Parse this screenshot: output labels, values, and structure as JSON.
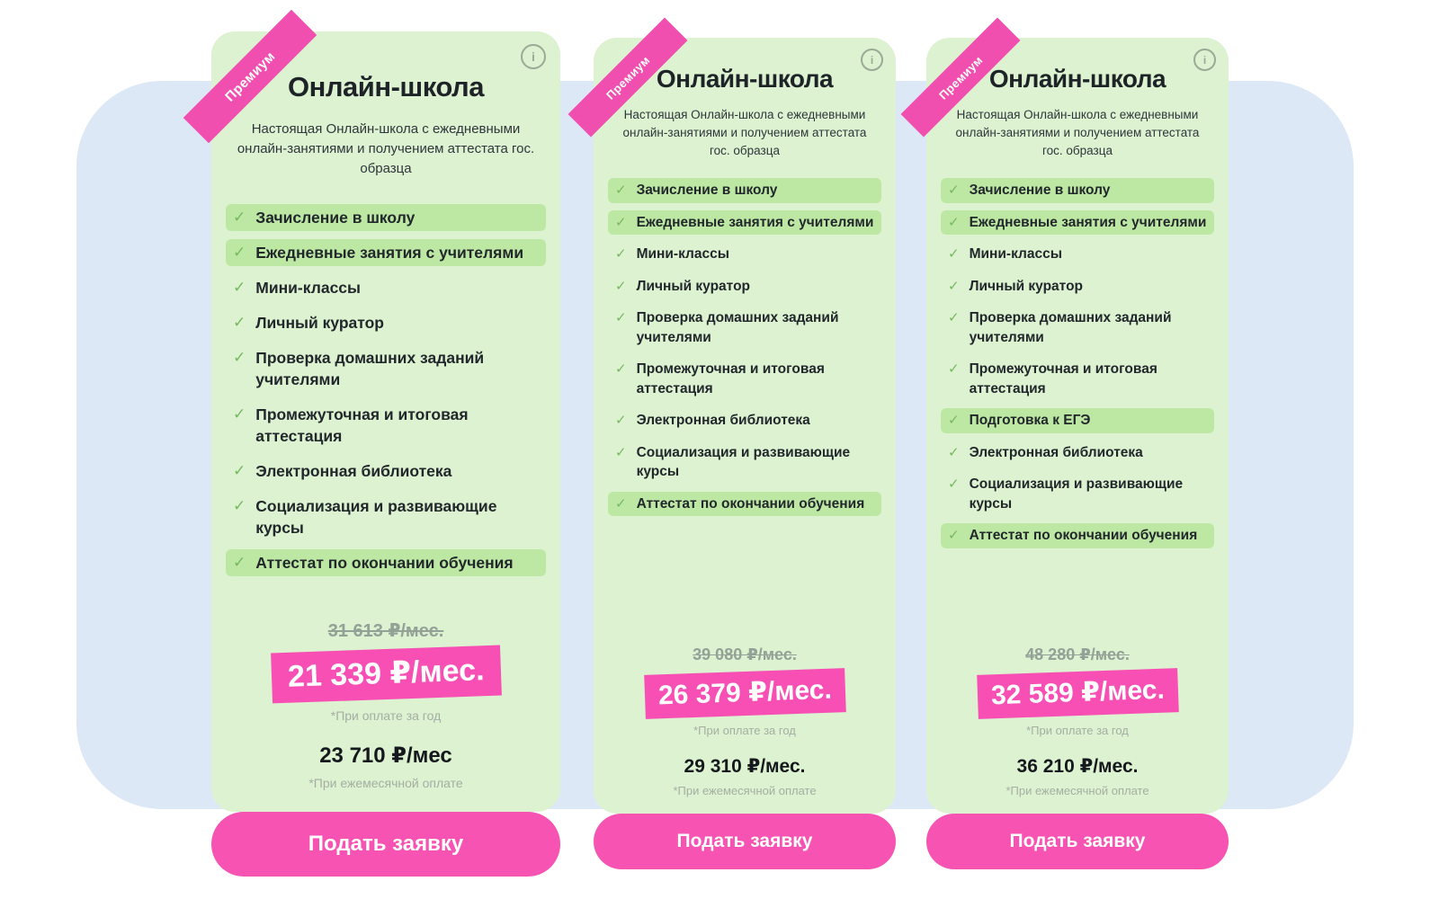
{
  "page": {
    "background_color": "#ffffff",
    "panel_color": "#dde8f6"
  },
  "colors": {
    "card_green": "#dcf2d0",
    "highlight_green": "#bde8a4",
    "accent_pink": "#f653b2",
    "ribbon_pink": "#f04fb0",
    "check_green": "#76b85f",
    "text_dark": "#22272c",
    "old_price_gray": "#94a197",
    "note_gray": "#a6aea4"
  },
  "icons": {
    "check": "✓",
    "info": "i"
  },
  "cards": [
    {
      "ribbon": "Премиум",
      "title": "Онлайн-школа",
      "description": "Настоящая Онлайн-школа с ежедневными онлайн-занятиями и получением аттестата гос. образца",
      "features": [
        {
          "text": "Зачисление в школу",
          "highlighted": true
        },
        {
          "text": "Ежедневные занятия с учителями",
          "highlighted": true
        },
        {
          "text": "Мини-классы",
          "highlighted": false
        },
        {
          "text": "Личный куратор",
          "highlighted": false
        },
        {
          "text": "Проверка домашних заданий учителями",
          "highlighted": false
        },
        {
          "text": "Промежуточная и итоговая аттестация",
          "highlighted": false
        },
        {
          "text": "Электронная библиотека",
          "highlighted": false
        },
        {
          "text": "Социализация и развивающие курсы",
          "highlighted": false
        },
        {
          "text": "Аттестат по окончании обучения",
          "highlighted": true
        }
      ],
      "pricing": {
        "old_price": "31 613 ₽/мес.",
        "promo_price": "21 339 ₽/мес.",
        "promo_note": "*При оплате за год",
        "monthly_price": "23 710 ₽/мес",
        "monthly_note": "*При ежемесячной оплате"
      },
      "cta_label": "Подать заявку"
    },
    {
      "ribbon": "Премиум",
      "title": "Онлайн-школа",
      "description": "Настоящая Онлайн-школа с ежедневными онлайн-занятиями и получением аттестата гос. образца",
      "features": [
        {
          "text": "Зачисление в школу",
          "highlighted": true
        },
        {
          "text": "Ежедневные занятия с учителями",
          "highlighted": true
        },
        {
          "text": "Мини-классы",
          "highlighted": false
        },
        {
          "text": "Личный куратор",
          "highlighted": false
        },
        {
          "text": "Проверка домашних заданий учителями",
          "highlighted": false
        },
        {
          "text": "Промежуточная и итоговая аттестация",
          "highlighted": false
        },
        {
          "text": "Электронная библиотека",
          "highlighted": false
        },
        {
          "text": "Социализация и развивающие курсы",
          "highlighted": false
        },
        {
          "text": "Аттестат по окончании обучения",
          "highlighted": true
        }
      ],
      "pricing": {
        "old_price": "39 080 ₽/мес.",
        "promo_price": "26 379 ₽/мес.",
        "promo_note": "*При оплате за год",
        "monthly_price": "29 310 ₽/мес.",
        "monthly_note": "*При ежемесячной оплате"
      },
      "cta_label": "Подать заявку"
    },
    {
      "ribbon": "Премиум",
      "title": "Онлайн-школа",
      "description": "Настоящая Онлайн-школа с ежедневными онлайн-занятиями и получением аттестата гос. образца",
      "features": [
        {
          "text": "Зачисление в школу",
          "highlighted": true
        },
        {
          "text": "Ежедневные занятия с учителями",
          "highlighted": true
        },
        {
          "text": "Мини-классы",
          "highlighted": false
        },
        {
          "text": "Личный куратор",
          "highlighted": false
        },
        {
          "text": "Проверка домашних заданий учителями",
          "highlighted": false
        },
        {
          "text": "Промежуточная и итоговая аттестация",
          "highlighted": false
        },
        {
          "text": "Подготовка к ЕГЭ",
          "highlighted": true
        },
        {
          "text": "Электронная библиотека",
          "highlighted": false
        },
        {
          "text": "Социализация и развивающие курсы",
          "highlighted": false
        },
        {
          "text": "Аттестат по окончании обучения",
          "highlighted": true
        }
      ],
      "pricing": {
        "old_price": "48 280 ₽/мес.",
        "promo_price": "32 589 ₽/мес.",
        "promo_note": "*При оплате за год",
        "monthly_price": "36 210 ₽/мес.",
        "monthly_note": "*При ежемесячной оплате"
      },
      "cta_label": "Подать заявку"
    }
  ]
}
